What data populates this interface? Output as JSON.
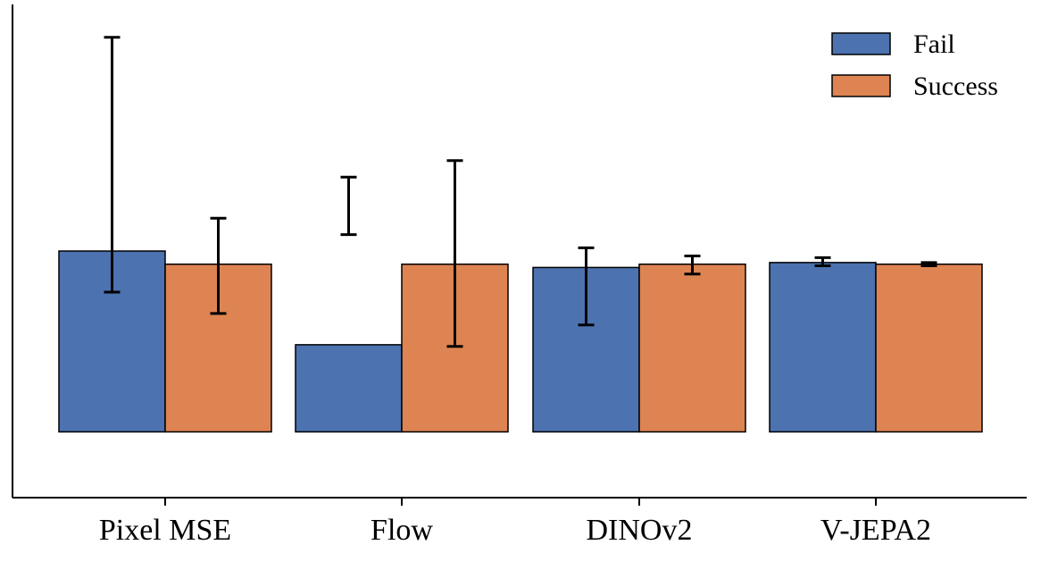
{
  "chart_data": {
    "type": "bar",
    "categories": [
      "Pixel MSE",
      "Flow",
      "DINOv2",
      "V-JEPA2"
    ],
    "series": [
      {
        "name": "Fail",
        "color": "#4c72b0",
        "values": [
          1.1,
          0.53,
          1.0,
          1.03
        ],
        "err_low": [
          0.85,
          1.55,
          0.65,
          1.01
        ],
        "err_high": [
          2.4,
          1.2,
          1.12,
          1.06
        ]
      },
      {
        "name": "Success",
        "color": "#dd8452",
        "values": [
          1.02,
          1.02,
          1.02,
          1.02
        ],
        "err_low": [
          0.72,
          0.52,
          0.96,
          1.01
        ],
        "err_high": [
          1.3,
          1.65,
          1.07,
          1.03
        ]
      }
    ],
    "ylim": [
      -0.4,
      2.6
    ],
    "grid": false,
    "legend": "top-right",
    "xlabel": "",
    "ylabel": ""
  }
}
